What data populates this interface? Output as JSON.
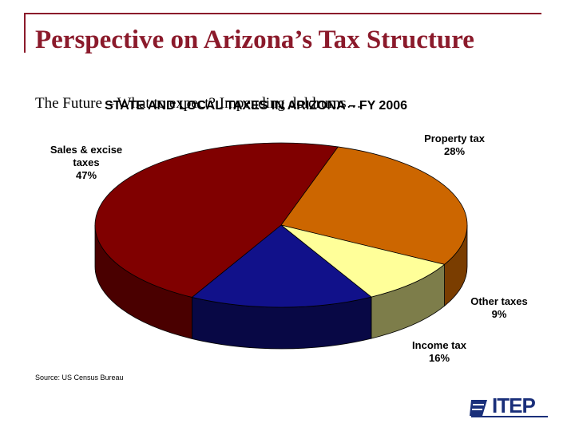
{
  "slide": {
    "title": "Perspective on Arizona’s Tax Structure",
    "subtitle": "The Future – What to expect?  Impending doldrums…"
  },
  "chart_data": {
    "type": "pie",
    "title": "STATE AND LOCAL TAXES IN ARIZONA – FY 2006",
    "slices": [
      {
        "name": "Property tax",
        "label_line1": "Property tax",
        "value": 28,
        "value_label": "28%",
        "color": "#cc6600",
        "side_color": "#7a3d00"
      },
      {
        "name": "Other taxes",
        "label_line1": "Other taxes",
        "value": 9,
        "value_label": "9%",
        "color": "#ffff99",
        "side_color": "#7d7d4a"
      },
      {
        "name": "Income tax",
        "label_line1": "Income tax",
        "value": 16,
        "value_label": "16%",
        "color": "#11118a",
        "side_color": "#080845"
      },
      {
        "name": "Sales & excise taxes",
        "label_line1": "Sales & excise",
        "label_line2": "taxes",
        "value": 47,
        "value_label": "47%",
        "color": "#800000",
        "side_color": "#4a0000"
      }
    ],
    "source": "Source: US Census Bureau",
    "three_d": true
  },
  "logo": {
    "text": "ITEP",
    "name": "itep-logo"
  }
}
